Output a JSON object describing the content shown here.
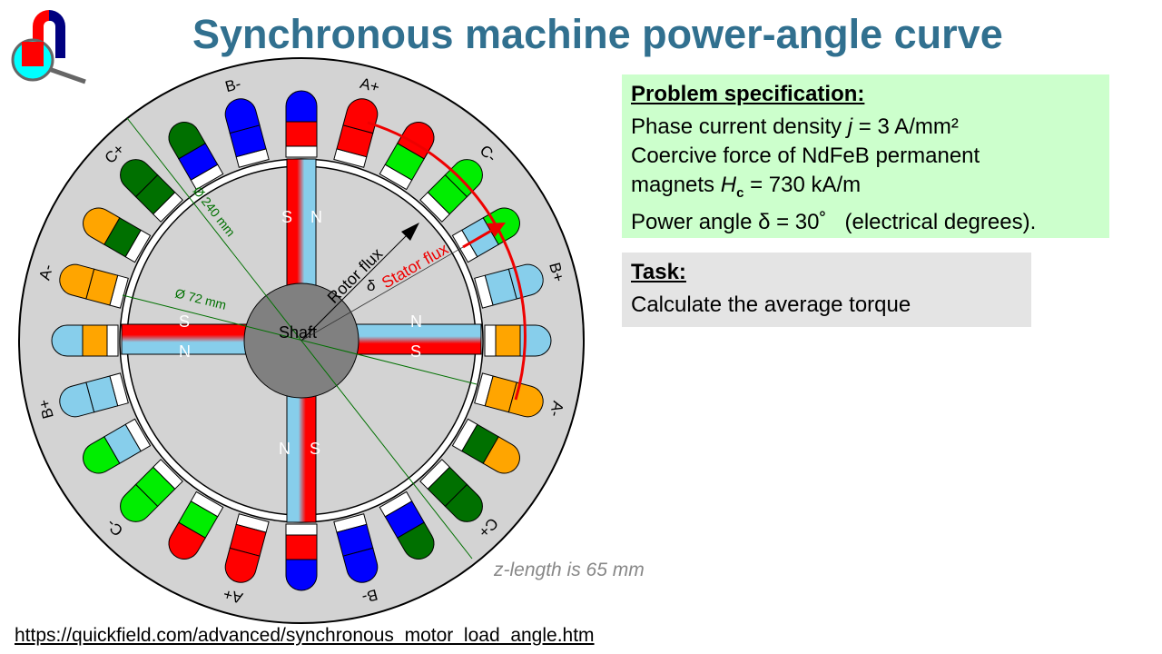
{
  "title": "Synchronous machine power-angle curve",
  "spec": {
    "heading": "Problem specification:",
    "line1_pre": "Phase current density ",
    "line1_var": "j",
    "line1_post": " = 3 A/mm²",
    "line2": "Coercive force of NdFeB permanent",
    "line3_pre": "magnets ",
    "line3_var": "H",
    "line3_sub": "c",
    "line3_post": " = 730 kA/m",
    "line4": "Power angle δ = 30˚   (electrical degrees)."
  },
  "task": {
    "heading": "Task:",
    "text": "Calculate the average torque"
  },
  "z_length": "z-length is 65 mm",
  "url": "https://quickfield.com/advanced/synchronous_motor_load_angle.htm",
  "diagram": {
    "shaft": "Shaft",
    "rotor_flux": "Rotor flux",
    "stator_flux": "Stator flux",
    "delta": "δ",
    "dim_outer": "Ø 240 mm",
    "dim_inner": "Ø 72 mm",
    "pole_labels": {
      "S": "S",
      "N": "N"
    },
    "phase_labels": [
      "A+",
      "C-",
      "B+",
      "A-",
      "C+",
      "B-",
      "A+",
      "C-",
      "B+",
      "A-",
      "C+",
      "B-"
    ],
    "colors": {
      "A+": "#ff0000",
      "A-": "#ffa500",
      "B+": "#87ceeb",
      "B-": "#0000ff",
      "C+": "#007000",
      "C-": "#00ee00",
      "stator": "#d3d3d3",
      "shaft": "#808080",
      "title": "#31708f"
    }
  }
}
